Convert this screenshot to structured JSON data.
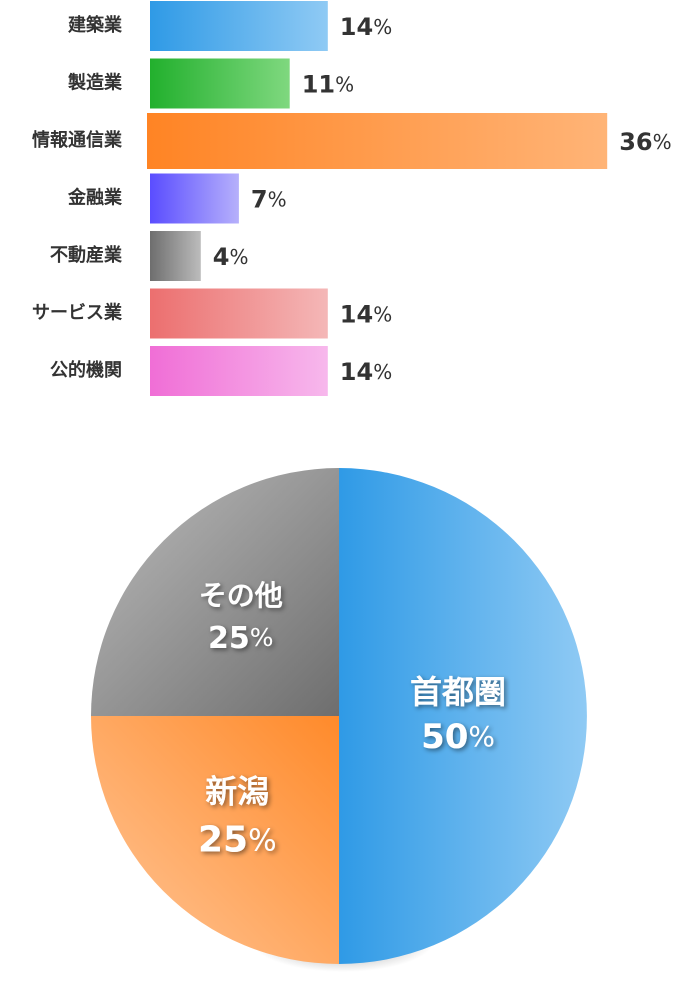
{
  "chart_data": [
    {
      "type": "bar",
      "orientation": "horizontal",
      "unit": "%",
      "categories": [
        "建築業",
        "製造業",
        "情報通信業",
        "金融業",
        "不動産業",
        "サービス業",
        "公的機関"
      ],
      "values": [
        14,
        11,
        36,
        7,
        4,
        14,
        14
      ],
      "highlight": "情報通信業",
      "colors": [
        [
          "#2f9ae6",
          "#8fcaf4"
        ],
        [
          "#22b02d",
          "#7fd87f"
        ],
        [
          "#ff8424",
          "#ffb477"
        ],
        [
          "#5a4dff",
          "#b6b0fb"
        ],
        [
          "#6e6e6e",
          "#bcbcbc"
        ],
        [
          "#ec6f6f",
          "#f4b7b7"
        ],
        [
          "#f06ed6",
          "#f7b8ec"
        ]
      ]
    },
    {
      "type": "pie",
      "unit": "%",
      "labels": [
        "首都圏",
        "新潟",
        "その他"
      ],
      "values": [
        50,
        25,
        25
      ],
      "colors": [
        [
          "#2f9ae6",
          "#8fcaf4"
        ],
        [
          "#ff8a2a",
          "#ffc79a"
        ],
        [
          "#6e6e6e",
          "#bdbdbd"
        ]
      ]
    }
  ]
}
